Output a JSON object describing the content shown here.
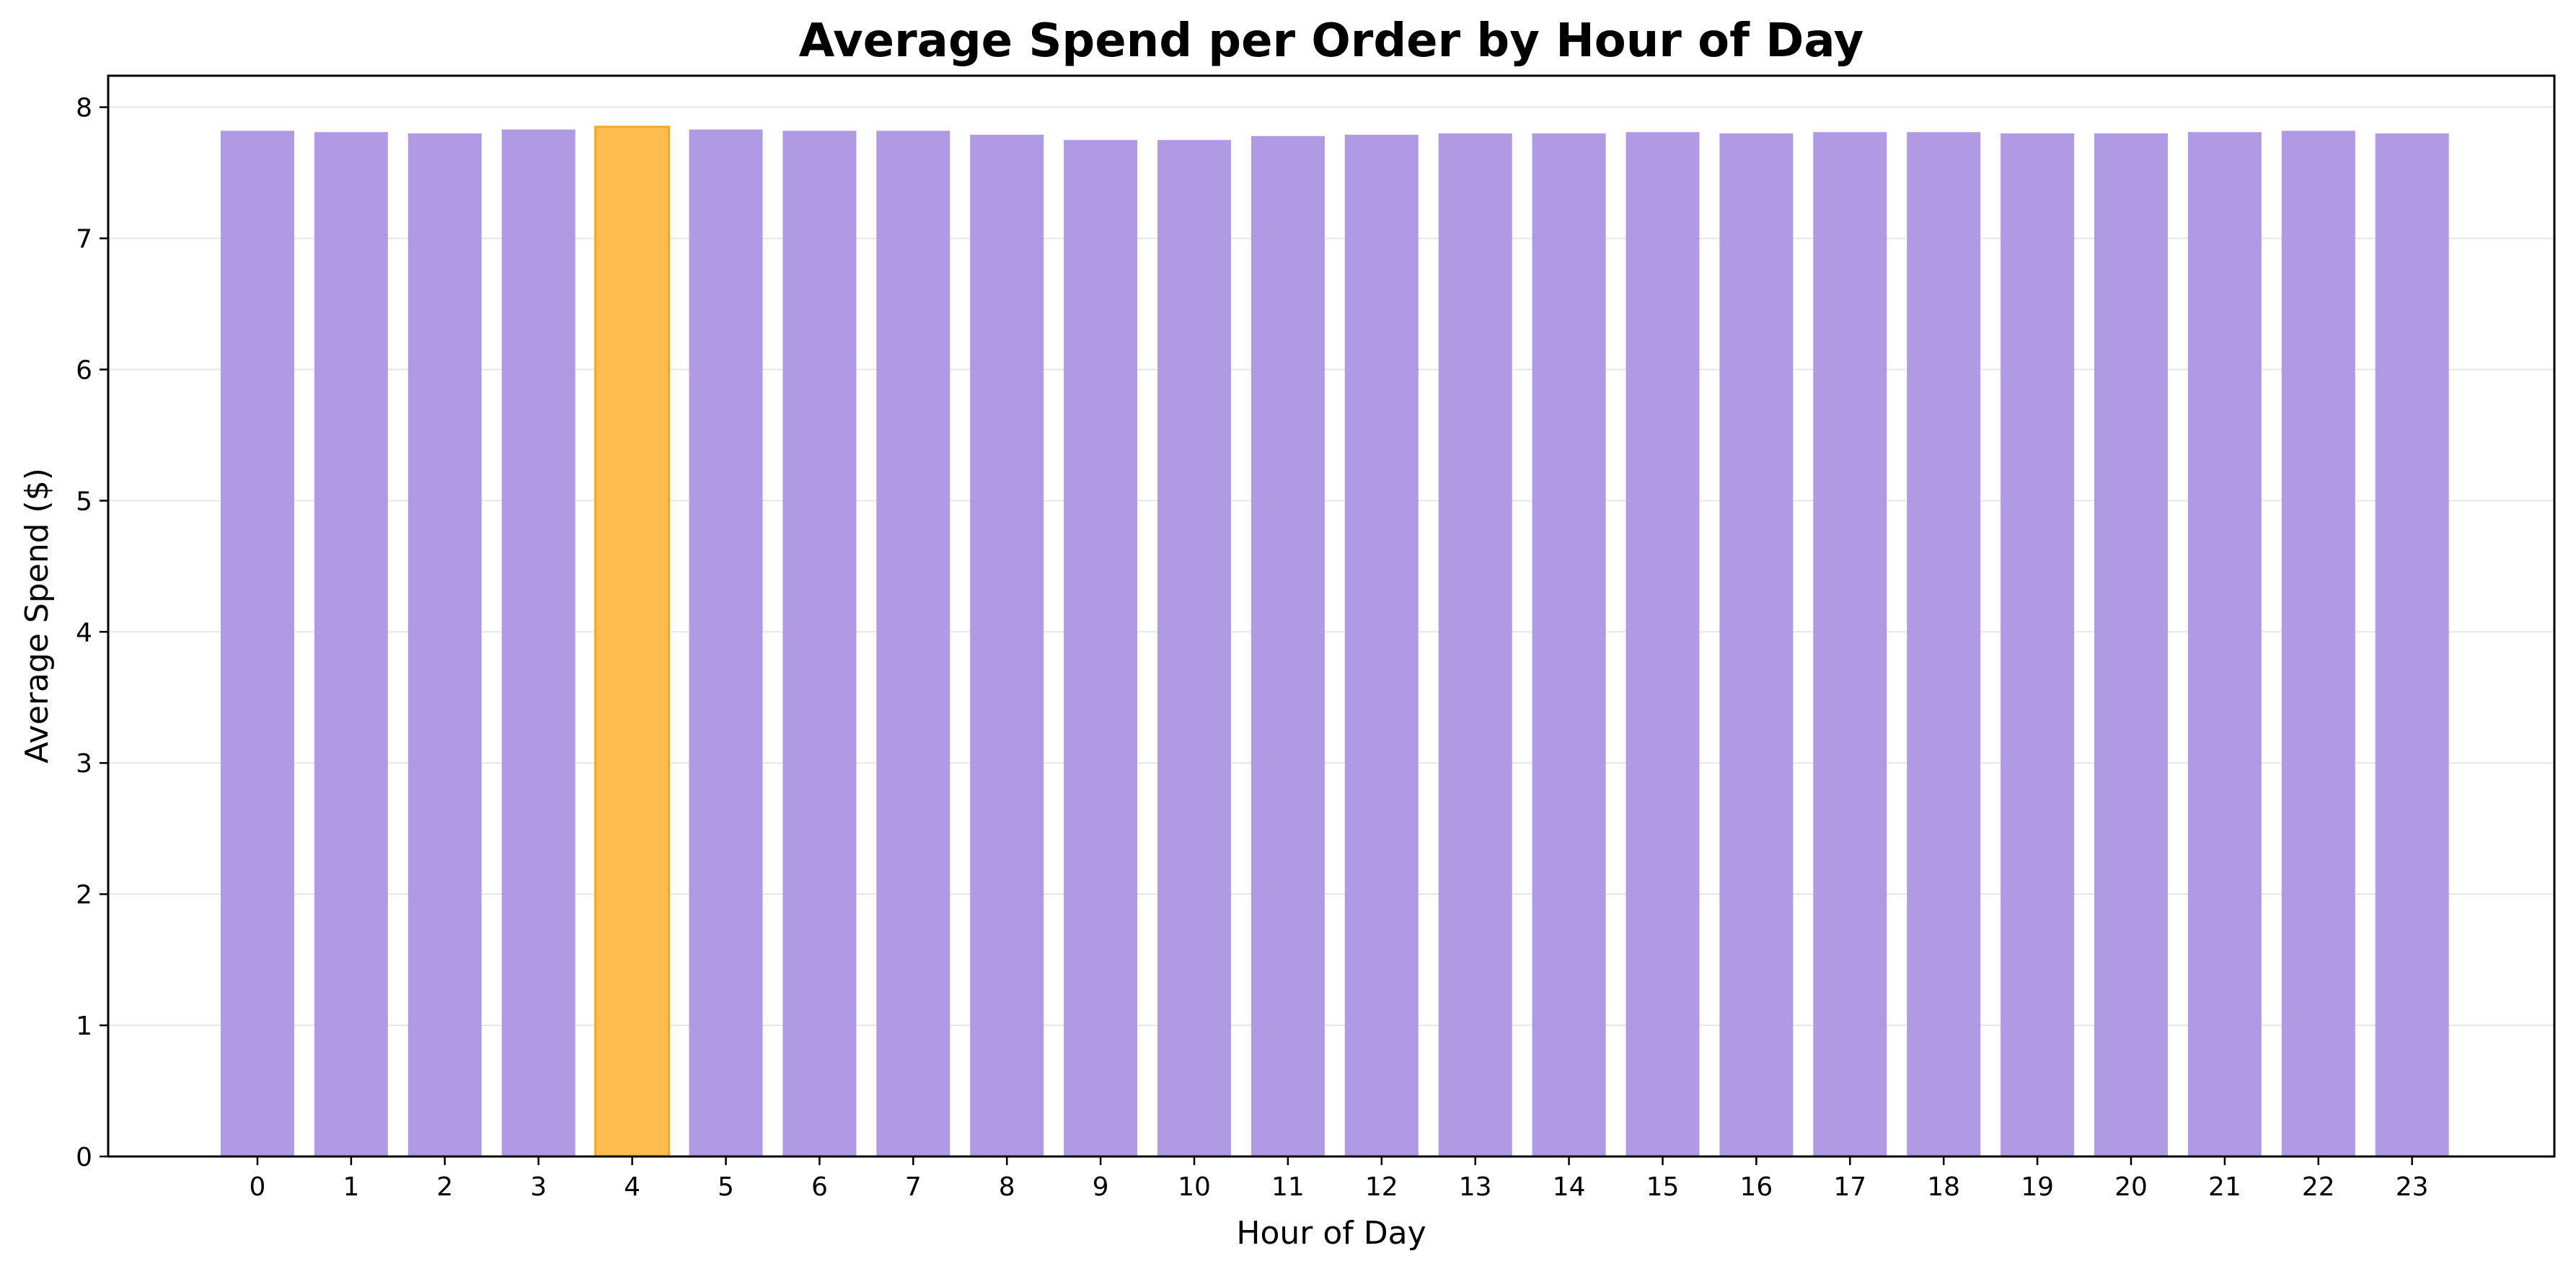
{
  "chart_data": {
    "type": "bar",
    "title": "Average Spend per Order by Hour of Day",
    "xlabel": "Hour of Day",
    "ylabel": "Average Spend ($)",
    "categories": [
      "0",
      "1",
      "2",
      "3",
      "4",
      "5",
      "6",
      "7",
      "8",
      "9",
      "10",
      "11",
      "12",
      "13",
      "14",
      "15",
      "16",
      "17",
      "18",
      "19",
      "20",
      "21",
      "22",
      "23"
    ],
    "values": [
      7.82,
      7.81,
      7.8,
      7.83,
      7.85,
      7.83,
      7.82,
      7.82,
      7.79,
      7.75,
      7.75,
      7.78,
      7.79,
      7.8,
      7.8,
      7.81,
      7.8,
      7.81,
      7.81,
      7.8,
      7.8,
      7.81,
      7.82,
      7.8
    ],
    "ylim": [
      0,
      8.24
    ],
    "yticks": [
      "0",
      "1",
      "2",
      "3",
      "4",
      "5",
      "6",
      "7",
      "8"
    ],
    "grid": "horizontal",
    "highlight_category": "4",
    "colors": {
      "bar": "#b19ae4",
      "highlight": "#ffbd4f",
      "highlight_edge": "#f5a623"
    }
  }
}
